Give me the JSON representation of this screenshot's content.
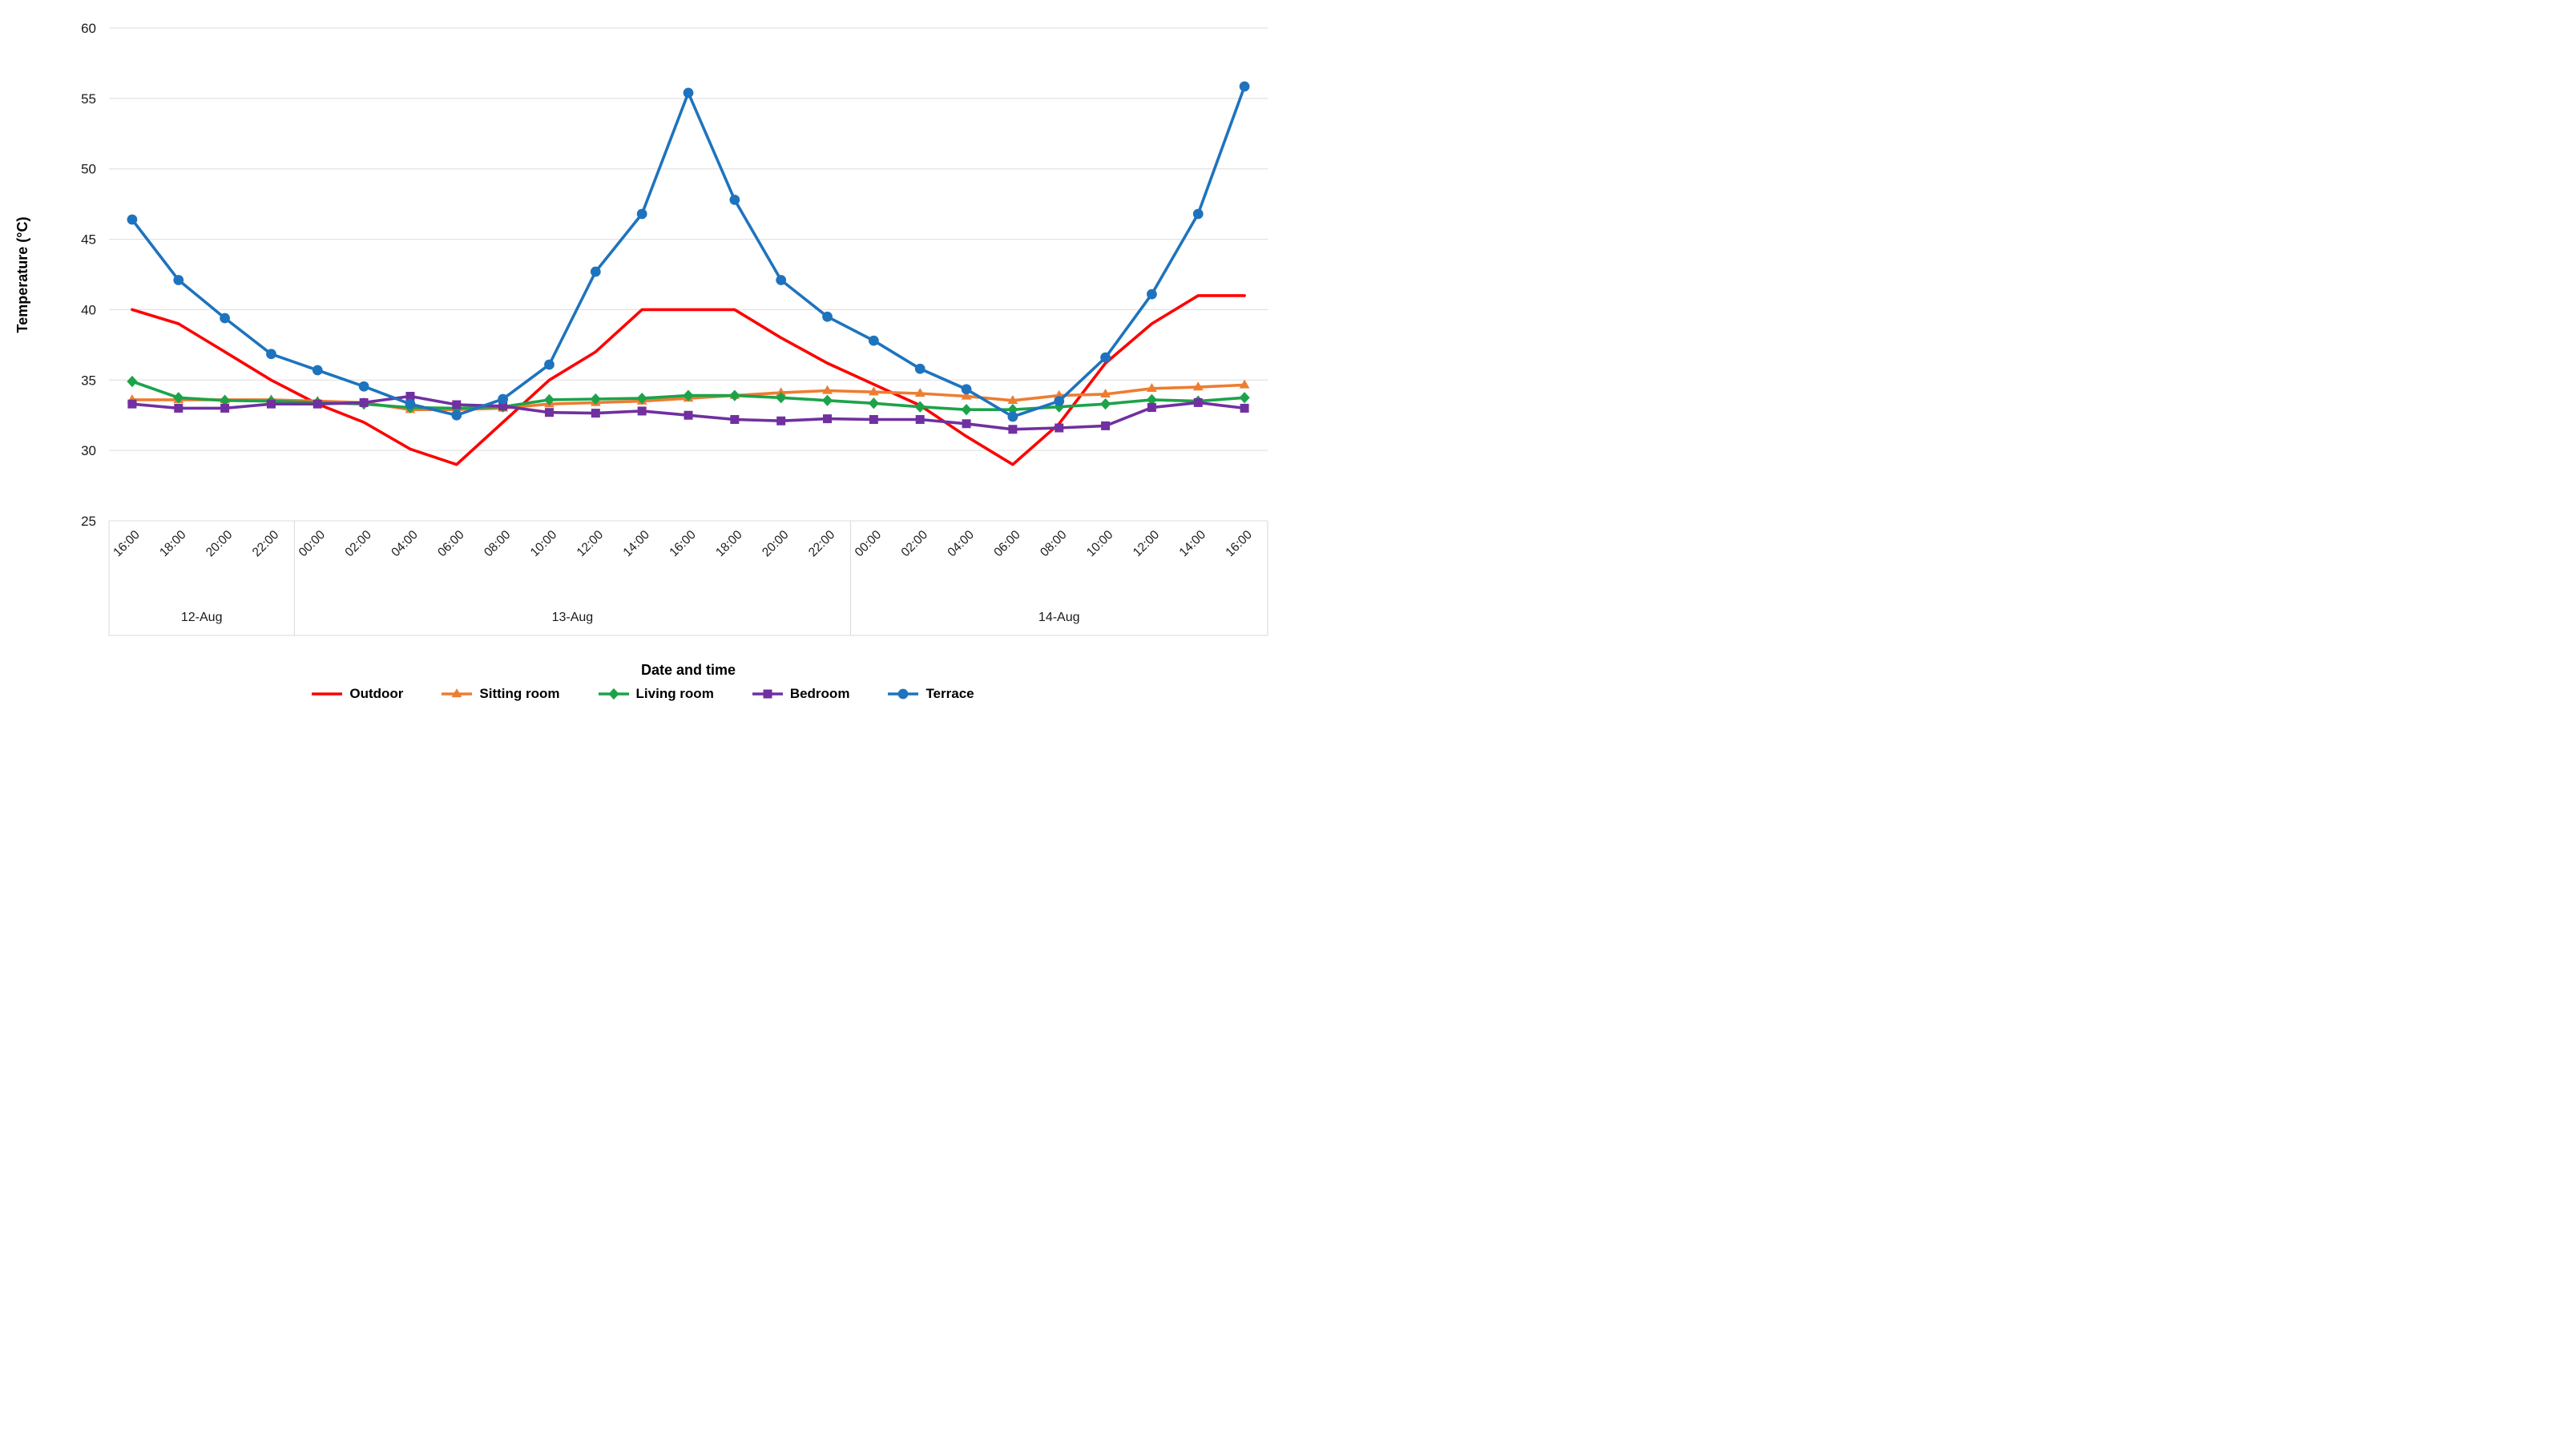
{
  "y_axis": {
    "title": "Temperature (°C)",
    "ticks": [
      60,
      55,
      50,
      45,
      40,
      35,
      30,
      25
    ],
    "min": 25,
    "max": 60
  },
  "x_axis": {
    "title": "Date and time",
    "date_groups": [
      {
        "label": "12-Aug",
        "start": 0,
        "count": 4
      },
      {
        "label": "13-Aug",
        "start": 4,
        "count": 12
      },
      {
        "label": "14-Aug",
        "start": 16,
        "count": 9
      }
    ]
  },
  "chart_data": {
    "type": "line",
    "title": "",
    "xlabel": "Date and time",
    "ylabel": "Temperature (°C)",
    "ylim": [
      25,
      60
    ],
    "ytick_step": 5,
    "grid": true,
    "legend_position": "bottom",
    "categories": [
      "16:00",
      "18:00",
      "20:00",
      "22:00",
      "00:00",
      "02:00",
      "04:00",
      "06:00",
      "08:00",
      "10:00",
      "12:00",
      "14:00",
      "16:00",
      "18:00",
      "20:00",
      "22:00",
      "00:00",
      "02:00",
      "04:00",
      "06:00",
      "08:00",
      "10:00",
      "12:00",
      "14:00",
      "16:00"
    ],
    "series": [
      {
        "name": "Outdoor",
        "color": "#FF0000",
        "marker": "none",
        "values": [
          40.0,
          39.0,
          37.0,
          35.0,
          33.3,
          32.0,
          30.1,
          29.0,
          32.0,
          35.0,
          37.0,
          40.0,
          40.0,
          40.0,
          38.0,
          36.2,
          34.7,
          33.2,
          31.0,
          29.0,
          31.9,
          36.2,
          39.0,
          41.0,
          41.0
        ]
      },
      {
        "name": "Sitting room",
        "color": "#ED7D31",
        "marker": "triangle",
        "values": [
          33.6,
          33.6,
          33.6,
          33.6,
          33.5,
          33.4,
          32.9,
          32.9,
          33.0,
          33.3,
          33.4,
          33.5,
          33.7,
          33.9,
          34.1,
          34.25,
          34.15,
          34.05,
          33.85,
          33.55,
          33.9,
          34.0,
          34.4,
          34.5,
          34.65
        ]
      },
      {
        "name": "Living room",
        "color": "#1CA34A",
        "marker": "diamond",
        "values": [
          34.9,
          33.75,
          33.55,
          33.5,
          33.4,
          33.3,
          33.05,
          33.0,
          33.1,
          33.6,
          33.65,
          33.7,
          33.9,
          33.9,
          33.75,
          33.55,
          33.35,
          33.1,
          32.9,
          32.9,
          33.1,
          33.3,
          33.6,
          33.5,
          33.75
        ]
      },
      {
        "name": "Bedroom",
        "color": "#7030A0",
        "marker": "square",
        "values": [
          33.3,
          33.0,
          33.0,
          33.3,
          33.3,
          33.4,
          33.85,
          33.25,
          33.15,
          32.7,
          32.65,
          32.8,
          32.5,
          32.2,
          32.1,
          32.25,
          32.2,
          32.2,
          31.9,
          31.5,
          31.6,
          31.75,
          33.05,
          33.4,
          33.0
        ]
      },
      {
        "name": "Terrace",
        "color": "#1E73BE",
        "marker": "circle",
        "values": [
          46.4,
          42.1,
          39.4,
          36.85,
          35.7,
          34.55,
          33.3,
          32.5,
          33.65,
          36.1,
          42.7,
          46.8,
          55.4,
          47.8,
          42.1,
          39.5,
          37.8,
          35.8,
          34.35,
          32.4,
          33.5,
          36.6,
          41.1,
          46.8,
          55.85
        ]
      }
    ]
  },
  "legend": {
    "items": [
      {
        "label": "Outdoor"
      },
      {
        "label": "Sitting room"
      },
      {
        "label": "Living room"
      },
      {
        "label": "Bedroom"
      },
      {
        "label": "Terrace"
      }
    ]
  },
  "colors": {
    "gridline": "#DCDCDC",
    "axis_line": "#D9D9D9",
    "tick_text": "#1a1a1a",
    "title_text": "#000000"
  }
}
